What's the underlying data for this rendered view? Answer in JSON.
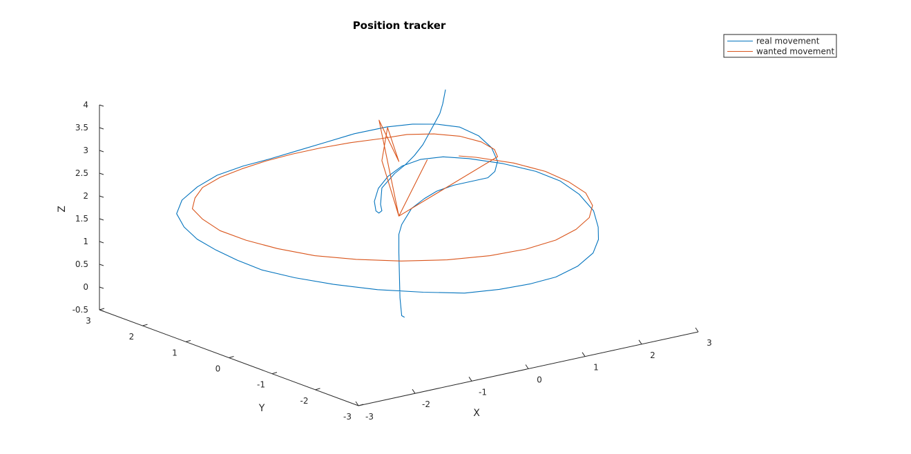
{
  "chart_data": {
    "type": "line",
    "title": "Position tracker",
    "xlabel": "X",
    "ylabel": "Y",
    "zlabel": "Z",
    "xlim": [
      -3,
      3
    ],
    "ylim": [
      -3,
      3
    ],
    "zlim": [
      -0.5,
      4
    ],
    "x_ticks": [
      "-3",
      "-2",
      "-1",
      "0",
      "1",
      "2",
      "3"
    ],
    "y_ticks": [
      "-3",
      "-2",
      "-1",
      "0",
      "1",
      "2",
      "3"
    ],
    "z_ticks": [
      "-0.5",
      "0",
      "0.5",
      "1",
      "1.5",
      "2",
      "2.5",
      "3",
      "3.5",
      "4"
    ],
    "grid": false,
    "legend_position": "top-right",
    "series": [
      {
        "name": "real movement",
        "color": "#0072bd",
        "description_points": "x,y,z samples",
        "points": [
          [
            0.1,
            0.0,
            -0.45
          ],
          [
            0.05,
            0.0,
            -0.4
          ],
          [
            0.02,
            0.0,
            0.0
          ],
          [
            0.01,
            0.0,
            0.5
          ],
          [
            0.0,
            0.0,
            1.0
          ],
          [
            0.0,
            0.0,
            1.4
          ],
          [
            0.05,
            0.0,
            1.6
          ],
          [
            0.3,
            0.1,
            1.85
          ],
          [
            0.6,
            0.2,
            1.95
          ],
          [
            0.9,
            0.3,
            2.0
          ],
          [
            1.2,
            0.3,
            2.05
          ],
          [
            1.5,
            0.3,
            2.05
          ],
          [
            1.8,
            0.3,
            2.05
          ],
          [
            2.0,
            0.4,
            2.1
          ],
          [
            2.2,
            0.6,
            2.2
          ],
          [
            2.4,
            1.0,
            2.3
          ],
          [
            2.55,
            1.5,
            2.35
          ],
          [
            2.6,
            2.0,
            2.35
          ],
          [
            2.5,
            2.4,
            2.3
          ],
          [
            2.3,
            2.7,
            2.25
          ],
          [
            2.0,
            2.9,
            2.2
          ],
          [
            1.5,
            3.0,
            2.15
          ],
          [
            1.0,
            3.0,
            2.1
          ],
          [
            0.5,
            3.0,
            2.05
          ],
          [
            0.0,
            3.0,
            2.0
          ],
          [
            -0.5,
            2.95,
            2.0
          ],
          [
            -1.0,
            2.9,
            1.95
          ],
          [
            -1.5,
            2.7,
            1.9
          ],
          [
            -2.0,
            2.4,
            1.85
          ],
          [
            -2.4,
            2.0,
            1.8
          ],
          [
            -2.65,
            1.5,
            1.75
          ],
          [
            -2.8,
            1.0,
            1.7
          ],
          [
            -2.85,
            0.5,
            1.65
          ],
          [
            -2.85,
            0.0,
            1.6
          ],
          [
            -2.8,
            -0.5,
            1.55
          ],
          [
            -2.6,
            -1.0,
            1.5
          ],
          [
            -2.3,
            -1.5,
            1.45
          ],
          [
            -1.9,
            -2.0,
            1.4
          ],
          [
            -1.4,
            -2.4,
            1.35
          ],
          [
            -0.9,
            -2.7,
            1.3
          ],
          [
            -0.4,
            -2.85,
            1.3
          ],
          [
            0.1,
            -2.9,
            1.3
          ],
          [
            0.6,
            -2.85,
            1.3
          ],
          [
            1.1,
            -2.7,
            1.35
          ],
          [
            1.6,
            -2.4,
            1.4
          ],
          [
            2.0,
            -2.0,
            1.45
          ],
          [
            2.3,
            -1.6,
            1.5
          ],
          [
            2.6,
            -1.1,
            1.6
          ],
          [
            2.8,
            -0.5,
            1.7
          ],
          [
            2.85,
            0.0,
            1.8
          ],
          [
            2.8,
            0.5,
            1.85
          ],
          [
            2.6,
            1.0,
            1.9
          ],
          [
            2.3,
            1.4,
            1.95
          ],
          [
            2.0,
            1.6,
            2.0
          ],
          [
            1.6,
            1.6,
            2.05
          ],
          [
            1.2,
            1.5,
            2.05
          ],
          [
            0.8,
            1.3,
            2.0
          ],
          [
            0.4,
            1.0,
            1.95
          ],
          [
            0.1,
            0.7,
            1.85
          ],
          [
            -0.1,
            0.4,
            1.8
          ],
          [
            -0.2,
            0.2,
            1.85
          ],
          [
            -0.3,
            0.0,
            2.0
          ],
          [
            -0.4,
            -0.1,
            2.2
          ],
          [
            -0.3,
            0.0,
            2.5
          ],
          [
            0.0,
            0.1,
            2.7
          ],
          [
            0.2,
            0.1,
            2.85
          ],
          [
            0.35,
            0.1,
            3.0
          ],
          [
            0.5,
            0.1,
            3.2
          ],
          [
            0.6,
            0.1,
            3.4
          ],
          [
            0.7,
            0.1,
            3.6
          ],
          [
            0.8,
            0.1,
            3.8
          ],
          [
            0.85,
            0.1,
            4.0
          ],
          [
            0.9,
            0.1,
            4.3
          ]
        ]
      },
      {
        "name": "wanted movement",
        "color": "#d95319",
        "points": [
          [
            0.0,
            0.0,
            1.8
          ],
          [
            -0.35,
            0.0,
            4.0
          ],
          [
            0.0,
            0.0,
            3.0
          ],
          [
            -0.2,
            0.0,
            3.8
          ],
          [
            -0.3,
            0.0,
            3.1
          ],
          [
            0.0,
            0.0,
            1.8
          ],
          [
            0.5,
            0.0,
            2.9
          ],
          [
            0.0,
            0.0,
            1.8
          ],
          [
            2.2,
            0.6,
            2.3
          ],
          [
            2.45,
            1.0,
            2.25
          ],
          [
            2.6,
            1.5,
            2.2
          ],
          [
            2.6,
            2.0,
            2.15
          ],
          [
            2.45,
            2.4,
            2.1
          ],
          [
            2.2,
            2.7,
            2.05
          ],
          [
            1.85,
            2.85,
            2.0
          ],
          [
            1.4,
            2.95,
            2.0
          ],
          [
            0.9,
            3.0,
            2.0
          ],
          [
            0.4,
            3.0,
            2.0
          ],
          [
            -0.1,
            2.95,
            2.0
          ],
          [
            -0.6,
            2.85,
            2.0
          ],
          [
            -1.1,
            2.7,
            2.0
          ],
          [
            -1.6,
            2.45,
            2.0
          ],
          [
            -2.0,
            2.1,
            2.0
          ],
          [
            -2.35,
            1.7,
            2.0
          ],
          [
            -2.55,
            1.2,
            2.0
          ],
          [
            -2.7,
            0.6,
            2.0
          ],
          [
            -2.7,
            0.0,
            2.0
          ],
          [
            -2.6,
            -0.6,
            2.0
          ],
          [
            -2.4,
            -1.2,
            2.0
          ],
          [
            -2.05,
            -1.7,
            2.0
          ],
          [
            -1.6,
            -2.15,
            2.0
          ],
          [
            -1.05,
            -2.5,
            2.0
          ],
          [
            -0.45,
            -2.7,
            2.0
          ],
          [
            0.15,
            -2.75,
            2.0
          ],
          [
            0.75,
            -2.65,
            2.0
          ],
          [
            1.3,
            -2.4,
            2.0
          ],
          [
            1.8,
            -2.05,
            2.0
          ],
          [
            2.2,
            -1.6,
            2.0
          ],
          [
            2.5,
            -1.05,
            2.0
          ],
          [
            2.65,
            -0.45,
            2.0
          ],
          [
            2.7,
            0.15,
            2.0
          ],
          [
            2.6,
            0.75,
            2.0
          ],
          [
            2.35,
            1.3,
            2.0
          ],
          [
            2.2,
            1.5,
            2.0
          ]
        ]
      }
    ]
  }
}
